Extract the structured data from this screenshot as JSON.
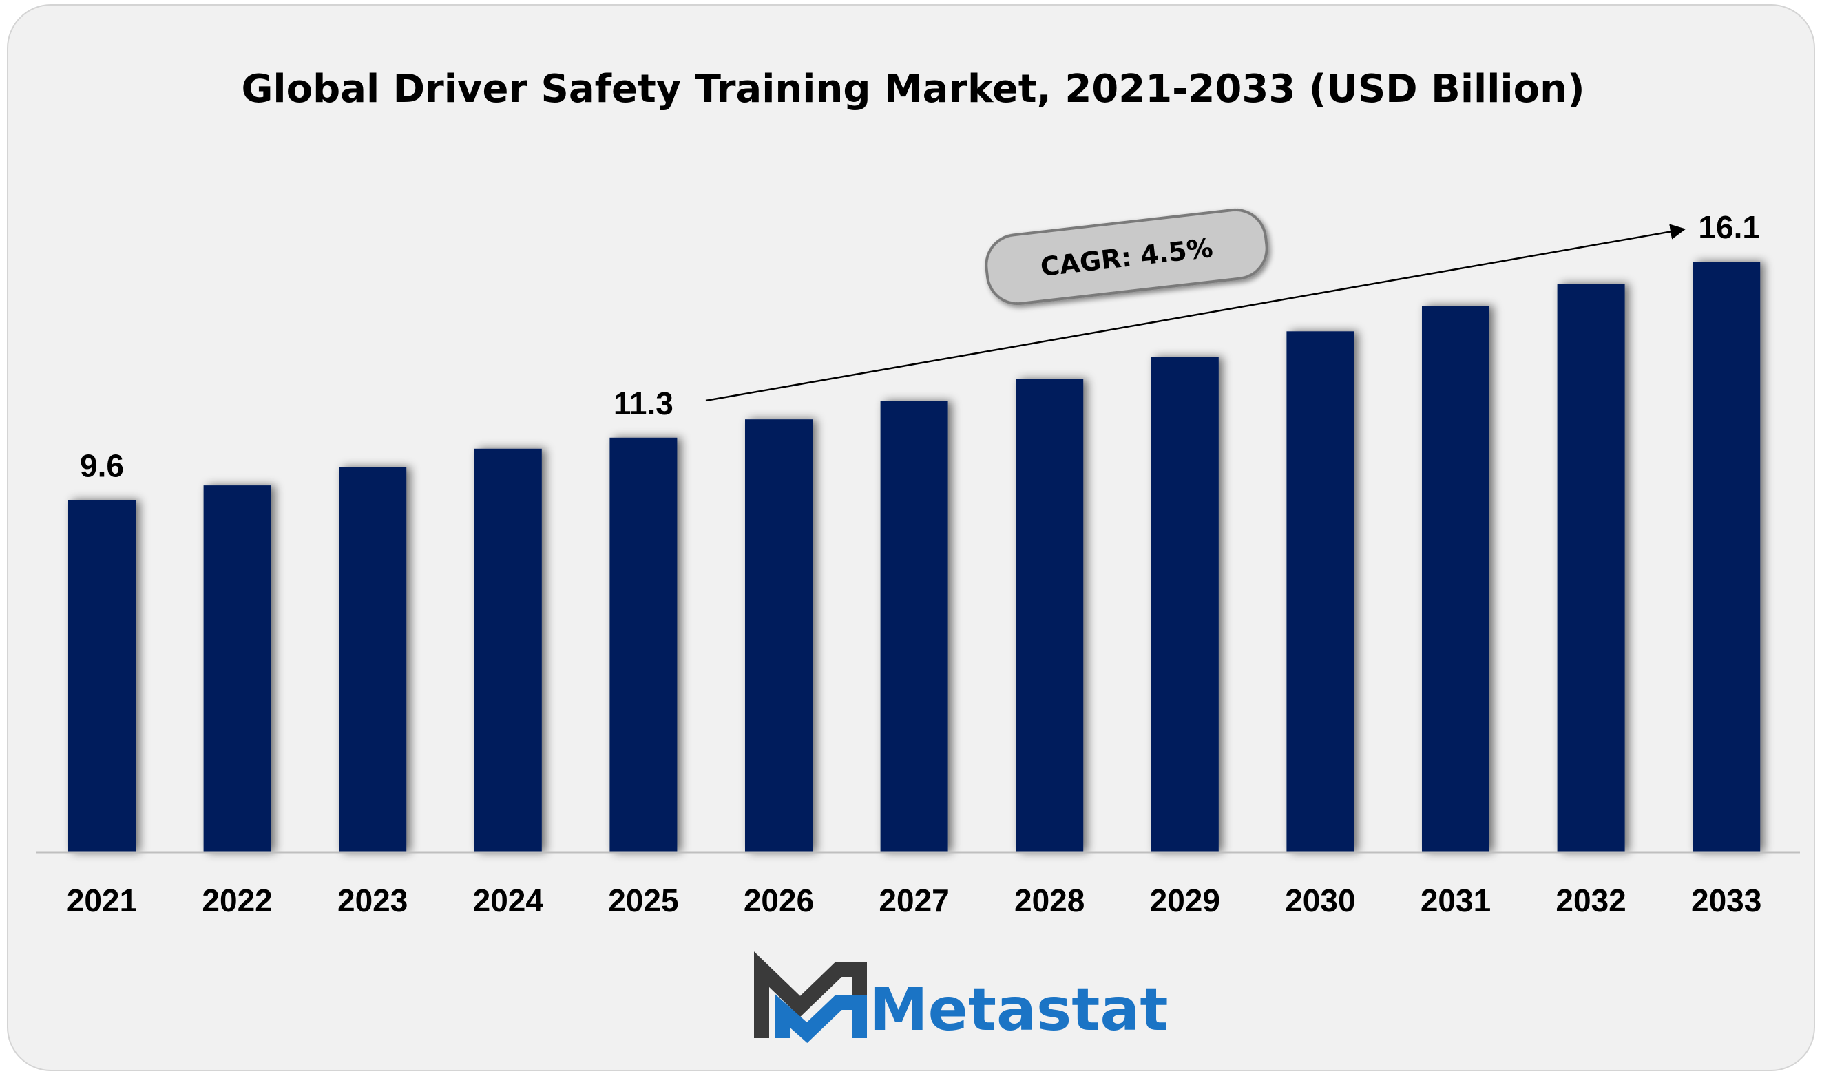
{
  "chart_data": {
    "type": "bar",
    "title": "Global Driver Safety Training Market, 2021-2033 (USD Billion)",
    "categories": [
      "2021",
      "2022",
      "2023",
      "2024",
      "2025",
      "2026",
      "2027",
      "2028",
      "2029",
      "2030",
      "2031",
      "2032",
      "2033"
    ],
    "values": [
      9.6,
      10.0,
      10.5,
      11.0,
      11.3,
      11.8,
      12.3,
      12.9,
      13.5,
      14.2,
      14.9,
      15.5,
      16.1
    ],
    "labeled_points": [
      {
        "category": "2021",
        "label": "9.6"
      },
      {
        "category": "2025",
        "label": "11.3"
      },
      {
        "category": "2033",
        "label": "16.1"
      }
    ],
    "annotation": "CAGR: 4.5%",
    "xlabel": "",
    "ylabel": "USD Billion",
    "ylim": [
      0,
      17.2
    ],
    "grid": false,
    "legend": "none",
    "bar_color": "#031f5c"
  },
  "brand": {
    "name": "Metastat",
    "color": "#1b74c5",
    "mark_dark": "#3a3a3a",
    "mark_blue": "#1b74c5"
  }
}
